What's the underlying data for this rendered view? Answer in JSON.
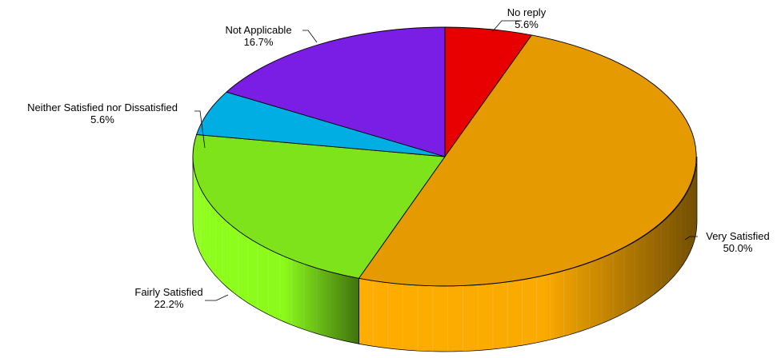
{
  "chart_data": {
    "type": "pie",
    "title": "",
    "slices": [
      {
        "label": "No reply",
        "value": 5.6,
        "value_label": "5.6%",
        "color": "#e80000",
        "side_color": "#ff1a1a"
      },
      {
        "label": "Very Satisfied",
        "value": 50.0,
        "value_label": "50.0%",
        "color": "#e49a00",
        "side_color": "#ffad00"
      },
      {
        "label": "Fairly Satisfied",
        "value": 22.2,
        "value_label": "22.2%",
        "color": "#7ee31a",
        "side_color": "#8eff1c"
      },
      {
        "label": "Neither Satisfied nor Dissatisfied",
        "value": 5.6,
        "value_label": "5.6%",
        "color": "#00aee3",
        "side_color": "#00c4ff"
      },
      {
        "label": "Not Applicable",
        "value": 16.7,
        "value_label": "16.7%",
        "color": "#7a1ee6",
        "side_color": "#8a22ff"
      }
    ],
    "style": "3d"
  }
}
